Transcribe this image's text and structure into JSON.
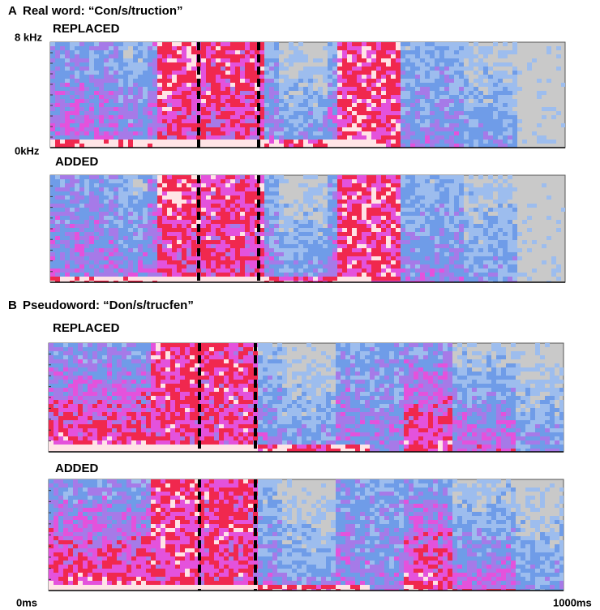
{
  "panel_a": {
    "label": "A",
    "title": "Real word: “Con/s/truction”",
    "axis_top": "8 kHz",
    "axis_bottom": "0kHz",
    "spectrograms": [
      {
        "label": "REPLACED"
      },
      {
        "label": "ADDED"
      }
    ]
  },
  "panel_b": {
    "label": "B",
    "title": "Pseudoword: “Don/s/trucfen”",
    "spectrograms": [
      {
        "label": "REPLACED"
      },
      {
        "label": "ADDED"
      }
    ]
  },
  "time_axis": {
    "start": "0ms",
    "end": "1000ms"
  }
}
